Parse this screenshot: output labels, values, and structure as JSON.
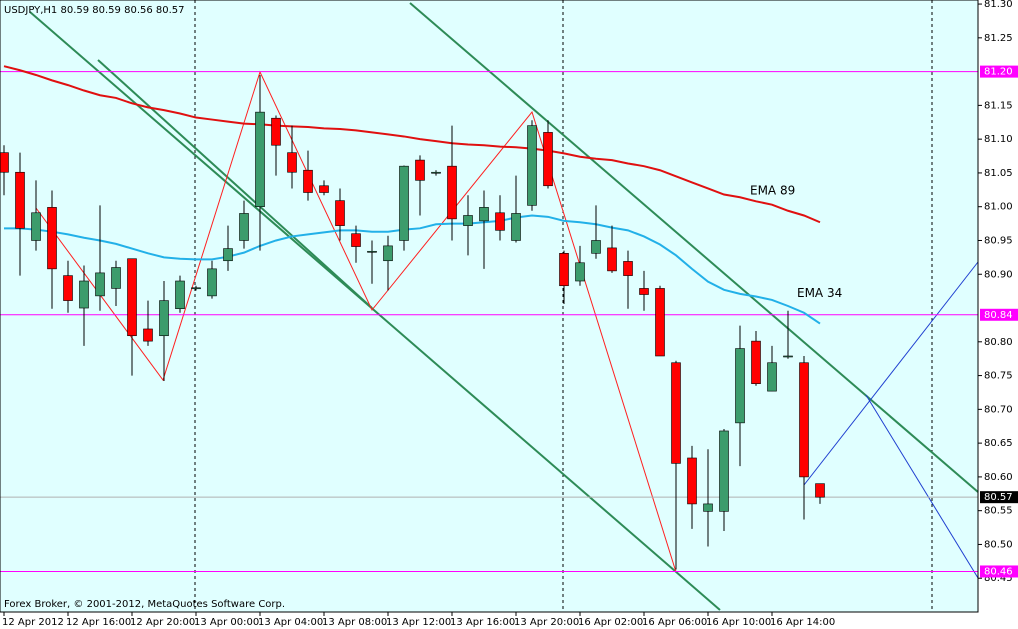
{
  "chart_data": {
    "type": "candlestick",
    "title": "USDJPY,H1  80.59 80.59 80.56 80.57",
    "footer": "Forex Broker, © 2001-2012, MetaQuotes Software Corp.",
    "categories": [
      "12 Apr 2012",
      null,
      null,
      null,
      "12 Apr 16:00",
      null,
      null,
      null,
      "12 Apr 20:00",
      null,
      null,
      null,
      "13 Apr 00:00",
      null,
      null,
      null,
      "13 Apr 04:00",
      null,
      null,
      null,
      "13 Apr 08:00",
      null,
      null,
      null,
      "13 Apr 12:00",
      null,
      null,
      null,
      "13 Apr 16:00",
      null,
      null,
      null,
      "13 Apr 20:00",
      null,
      null,
      null,
      "16 Apr 02:00",
      null,
      null,
      null,
      "16 Apr 06:00",
      null,
      null,
      null,
      "16 Apr 10:00",
      null,
      null,
      null,
      "16 Apr 14:00",
      null,
      null,
      null
    ],
    "open": [
      81.08,
      81.051,
      80.95,
      80.999,
      80.898,
      80.85,
      80.868,
      80.879,
      80.923,
      80.819,
      80.809,
      80.849,
      80.88,
      80.868,
      80.92,
      80.95,
      81.0,
      81.131,
      81.08,
      81.054,
      81.031,
      81.009,
      80.96,
      80.934,
      80.92,
      80.95,
      81.069,
      81.051,
      81.06,
      80.972,
      80.979,
      80.991,
      80.95,
      81.002,
      81.11,
      80.931,
      80.89,
      80.931,
      80.939,
      80.919,
      80.879,
      80.879,
      80.769,
      80.628,
      80.549,
      80.549,
      80.68,
      80.801,
      80.727,
      80.779,
      80.769,
      80.59
    ],
    "high": [
      81.091,
      81.08,
      81.039,
      81.024,
      80.92,
      80.913,
      81.002,
      80.92,
      80.923,
      80.861,
      80.89,
      80.898,
      80.883,
      80.92,
      80.972,
      81.009,
      81.195,
      81.135,
      81.12,
      81.083,
      81.039,
      81.027,
      80.972,
      80.95,
      80.957,
      81.061,
      81.076,
      81.054,
      81.12,
      81.017,
      81.024,
      81.017,
      81.046,
      81.128,
      81.128,
      80.935,
      80.942,
      81.002,
      80.972,
      80.935,
      80.905,
      80.883,
      80.772,
      80.646,
      80.641,
      80.671,
      80.824,
      80.816,
      80.794,
      80.846,
      80.779,
      80.59
    ],
    "low": [
      81.017,
      80.898,
      80.935,
      80.849,
      80.843,
      80.794,
      80.846,
      80.853,
      80.75,
      80.794,
      80.742,
      80.843,
      80.876,
      80.864,
      80.905,
      80.938,
      80.935,
      81.046,
      81.027,
      81.009,
      81.017,
      80.95,
      80.917,
      80.886,
      80.876,
      80.935,
      80.987,
      81.046,
      80.95,
      80.928,
      80.908,
      80.95,
      80.947,
      80.994,
      81.027,
      80.856,
      80.883,
      80.923,
      80.902,
      80.849,
      80.846,
      80.779,
      80.463,
      80.523,
      80.497,
      80.52,
      80.616,
      80.735,
      80.727,
      80.775,
      80.537,
      80.56
    ],
    "close": [
      81.051,
      80.968,
      80.991,
      80.908,
      80.861,
      80.89,
      80.902,
      80.91,
      80.809,
      80.801,
      80.861,
      80.89,
      80.88,
      80.908,
      80.938,
      80.99,
      81.14,
      81.091,
      81.051,
      81.021,
      81.021,
      80.972,
      80.941,
      80.934,
      80.942,
      81.06,
      81.039,
      81.051,
      80.982,
      80.987,
      80.999,
      80.965,
      80.99,
      81.12,
      81.031,
      80.883,
      80.917,
      80.95,
      80.905,
      80.898,
      80.87,
      80.779,
      80.62,
      80.56,
      80.56,
      80.668,
      80.79,
      80.738,
      80.769,
      80.779,
      80.6,
      80.57
    ],
    "up_color": "#3c9c6c",
    "down_color": "#ff0000",
    "lines": [
      {
        "name": "EMA 89",
        "color": "#e01010",
        "values": [
          81.208,
          81.202,
          81.195,
          81.187,
          81.18,
          81.172,
          81.165,
          81.161,
          81.153,
          81.147,
          81.143,
          81.138,
          81.132,
          81.129,
          81.126,
          81.123,
          81.122,
          81.12,
          81.119,
          81.118,
          81.116,
          81.115,
          81.113,
          81.11,
          81.107,
          81.104,
          81.1,
          81.097,
          81.094,
          81.092,
          81.091,
          81.089,
          81.088,
          81.086,
          81.083,
          81.079,
          81.074,
          81.071,
          81.069,
          81.064,
          81.06,
          81.054,
          81.045,
          81.036,
          81.027,
          81.018,
          81.014,
          81.008,
          81.003,
          80.994,
          80.987,
          80.977
        ]
      },
      {
        "name": "EMA 34",
        "color": "#22b0e8",
        "values": [
          80.968,
          80.968,
          80.966,
          80.963,
          80.959,
          80.954,
          80.95,
          80.945,
          80.938,
          80.931,
          80.925,
          80.923,
          80.922,
          80.922,
          80.926,
          80.932,
          80.942,
          80.95,
          80.956,
          80.959,
          80.962,
          80.965,
          80.965,
          80.963,
          80.963,
          80.966,
          80.968,
          80.974,
          80.975,
          80.975,
          80.977,
          80.979,
          80.984,
          80.987,
          80.985,
          80.979,
          80.977,
          80.974,
          80.969,
          80.965,
          80.956,
          80.944,
          80.928,
          80.908,
          80.889,
          80.877,
          80.871,
          80.867,
          80.862,
          80.853,
          80.843,
          80.827
        ]
      }
    ],
    "levels": [
      {
        "value": 81.2,
        "label": "81.20"
      },
      {
        "value": 80.84,
        "label": "80.84"
      },
      {
        "value": 80.46,
        "label": "80.46"
      }
    ],
    "level_color": "#ff00ff",
    "current_price": {
      "value": 80.57,
      "label": "80.57"
    },
    "ylim": [
      80.4,
      81.306
    ],
    "yticks": [
      {
        "value": 81.3,
        "label": "81.30"
      },
      {
        "value": 81.25,
        "label": "81.25"
      },
      {
        "value": 81.15,
        "label": "81.15"
      },
      {
        "value": 81.1,
        "label": "81.10"
      },
      {
        "value": 81.05,
        "label": "81.05"
      },
      {
        "value": 81.0,
        "label": "81.00"
      },
      {
        "value": 80.95,
        "label": "80.95"
      },
      {
        "value": 80.9,
        "label": "80.90"
      },
      {
        "value": 80.8,
        "label": "80.80"
      },
      {
        "value": 80.75,
        "label": "80.75"
      },
      {
        "value": 80.7,
        "label": "80.70"
      },
      {
        "value": 80.65,
        "label": "80.65"
      },
      {
        "value": 80.6,
        "label": "80.60"
      },
      {
        "value": 80.55,
        "label": "80.55"
      },
      {
        "value": 80.5,
        "label": "80.50"
      },
      {
        "value": 80.45,
        "label": "80.45"
      }
    ]
  }
}
